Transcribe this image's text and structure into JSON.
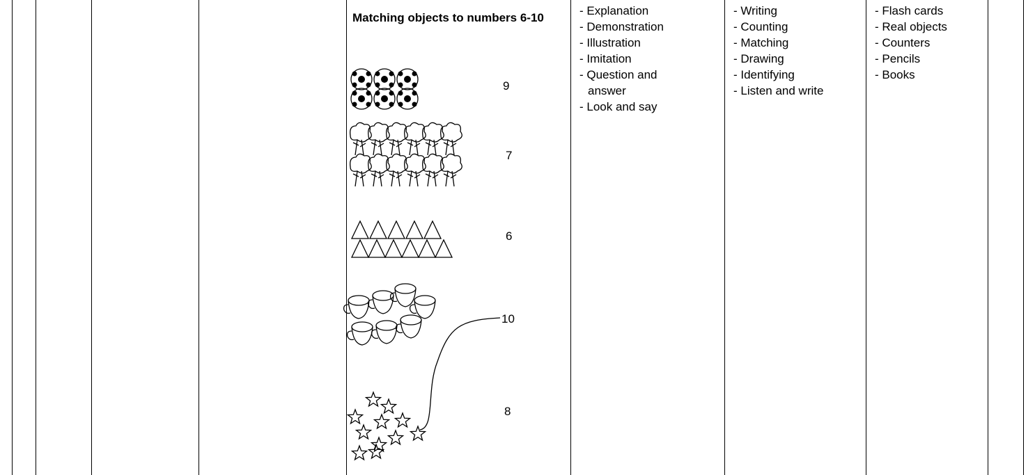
{
  "table": {
    "content": {
      "title": "Matching objects to numbers 6-10",
      "numbers": [
        9,
        7,
        6,
        10,
        8
      ]
    },
    "methods": [
      "- Explanation",
      "- Demonstration",
      "- Illustration",
      "- Imitation",
      "- Question and answer",
      "- Look and  say"
    ],
    "activities": [
      "- Writing",
      "- Counting",
      "- Matching",
      "- Drawing",
      "- Identifying",
      "- Listen and  write"
    ],
    "resources": [
      "- Flash  cards",
      "- Real objects",
      "- Counters",
      "- Pencils",
      "- Books"
    ]
  }
}
